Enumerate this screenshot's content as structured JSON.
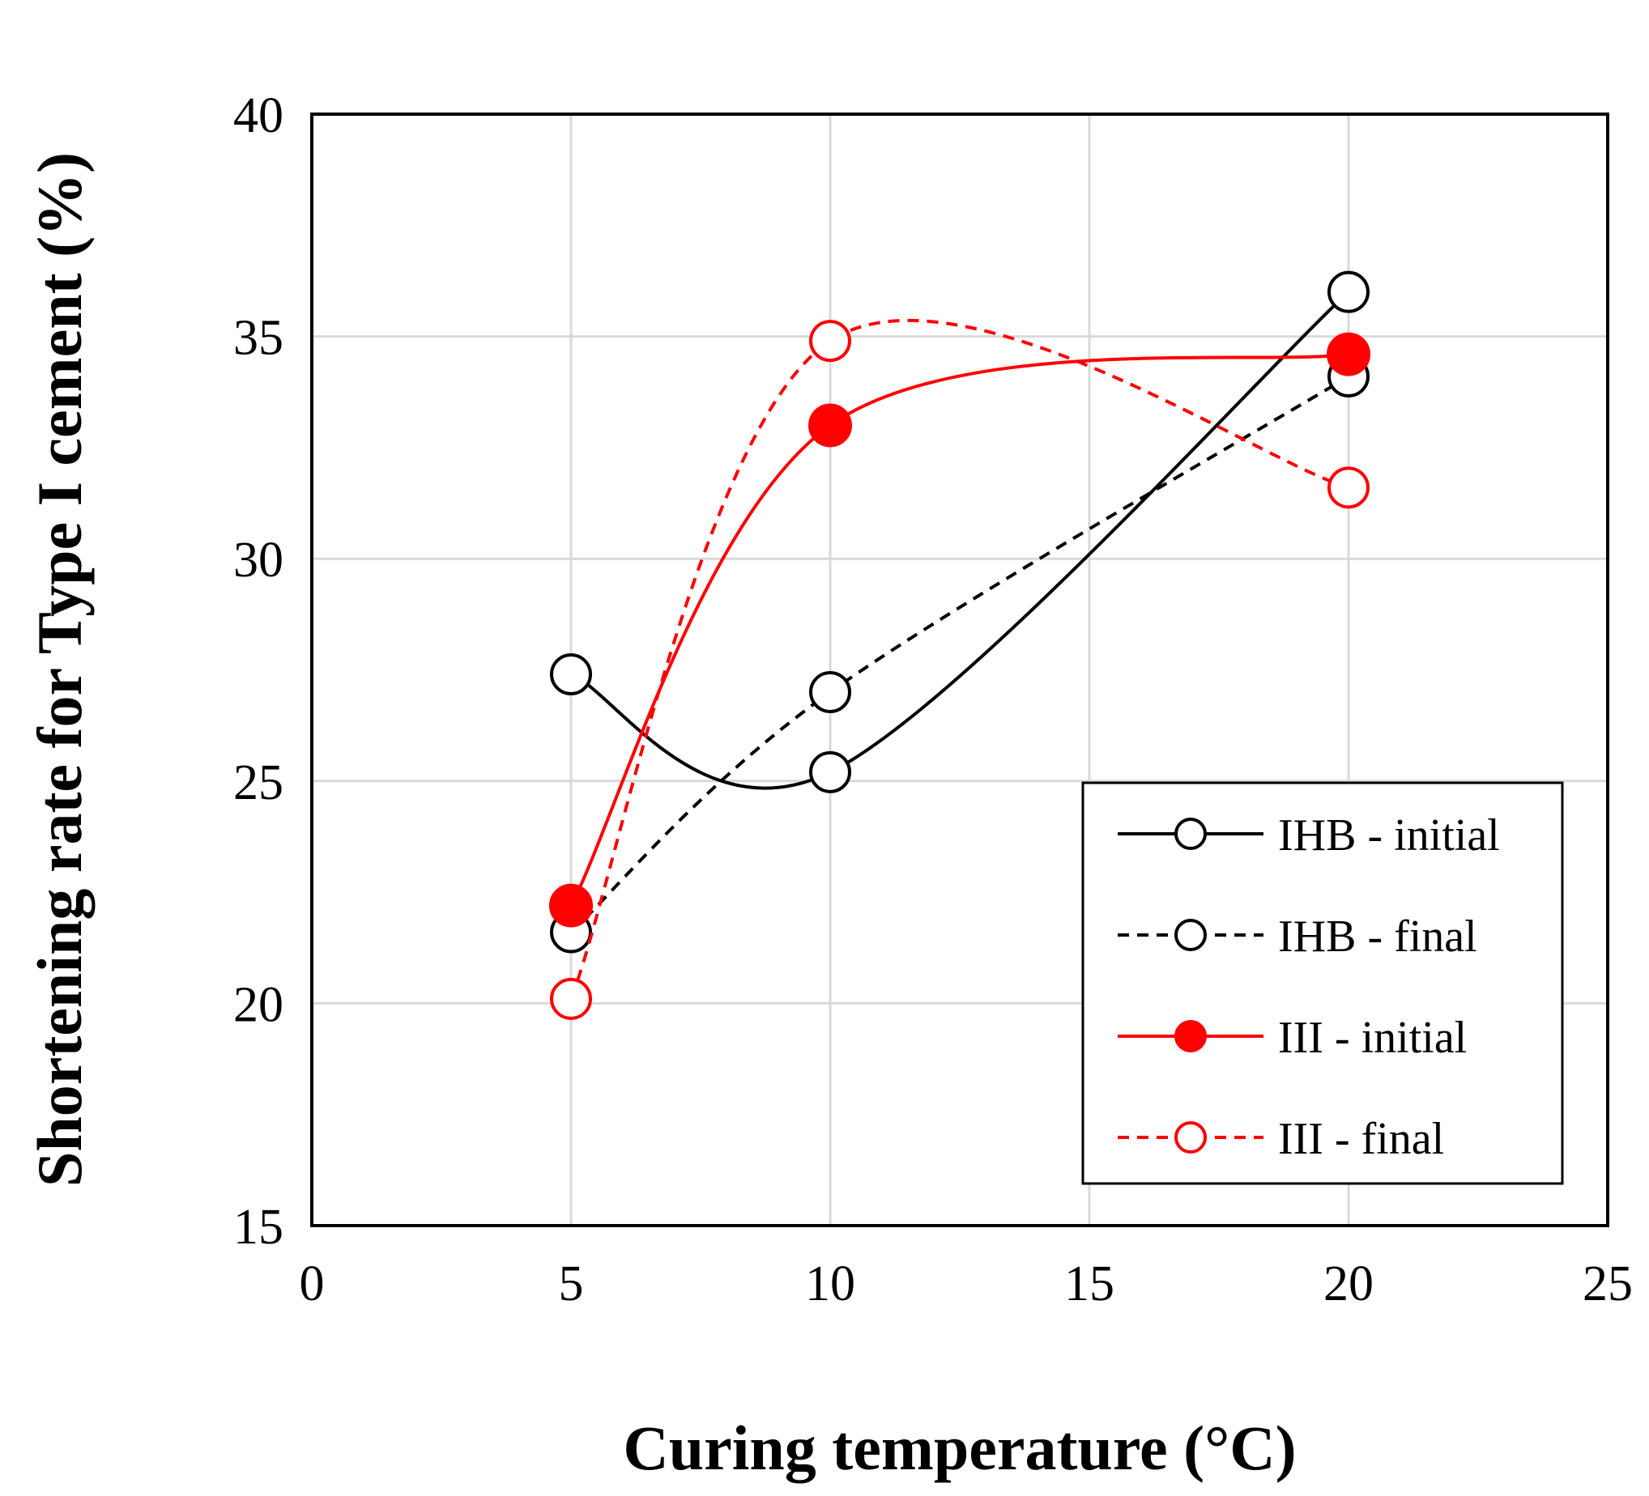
{
  "chart_data": {
    "type": "line",
    "title": "",
    "xlabel": "Curing temperature (°C)",
    "ylabel": "Shortening rate for Type I cement (%)",
    "xlim": [
      0,
      25
    ],
    "ylim": [
      15,
      40
    ],
    "xticks": [
      0,
      5,
      10,
      15,
      20,
      25
    ],
    "yticks": [
      15,
      20,
      25,
      30,
      35,
      40
    ],
    "xtick_labels": [
      "0",
      "5",
      "10",
      "15",
      "20",
      "25"
    ],
    "ytick_labels": [
      "15",
      "20",
      "25",
      "30",
      "35",
      "40"
    ],
    "grid": true,
    "legend_position": "bottom-right",
    "x": [
      5,
      10,
      20
    ],
    "series": [
      {
        "name": "IHB - initial",
        "values": [
          27.4,
          25.2,
          36.0
        ],
        "color": "#000000",
        "line_style": "solid",
        "marker": "open-circle"
      },
      {
        "name": "IHB - final",
        "values": [
          21.6,
          27.0,
          34.1
        ],
        "color": "#000000",
        "line_style": "dashed",
        "marker": "open-circle"
      },
      {
        "name": "III - initial",
        "values": [
          22.2,
          33.0,
          34.6
        ],
        "color": "#ff0000",
        "line_style": "solid",
        "marker": "filled-circle"
      },
      {
        "name": "III - final",
        "values": [
          20.1,
          34.9,
          31.6
        ],
        "color": "#ff0000",
        "line_style": "dashed",
        "marker": "open-circle"
      }
    ]
  }
}
